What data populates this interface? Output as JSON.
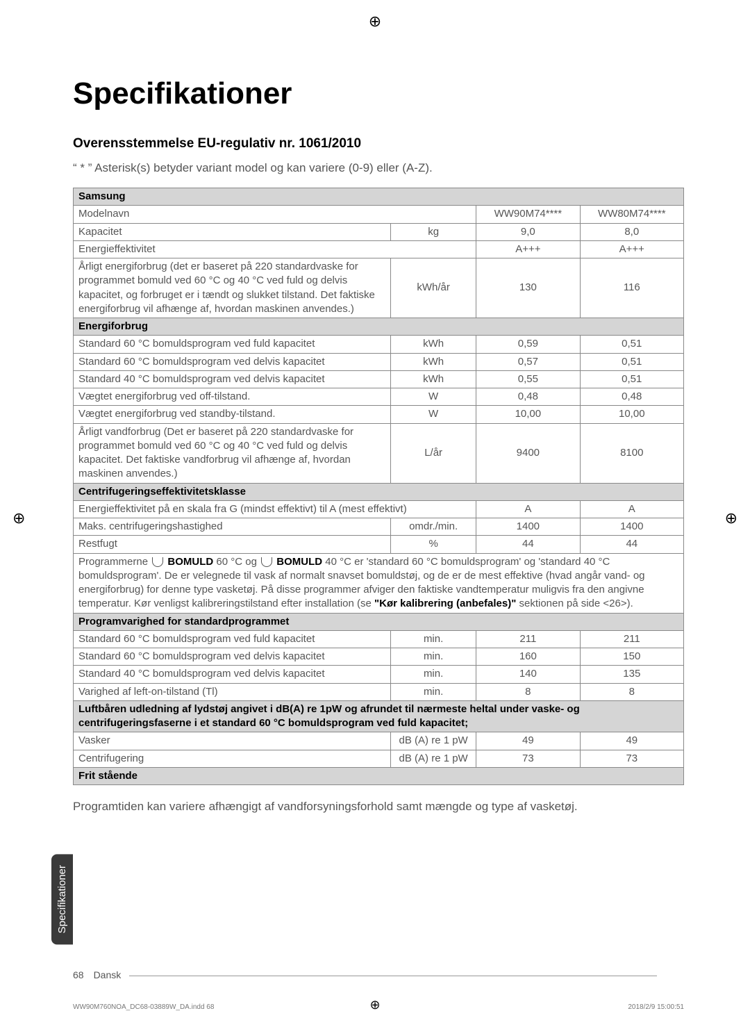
{
  "page": {
    "title": "Specifikationer",
    "subtitle": "Overensstemmelse EU-regulativ nr. 1061/2010",
    "asterisk_note": "“ * ” Asterisk(s) betyder variant model og kan variere (0-9) eller (A-Z).",
    "body_note": "Programtiden kan variere afhængigt af vandforsyningsforhold samt mængde og type af vasketøj.",
    "side_tab": "Specifikationer",
    "footer_page": "68 Dansk",
    "footer_file": "WW90M760NOA_DC68-03889W_DA.indd   68",
    "footer_time": "2018/2/9   15:00:51"
  },
  "table": {
    "brand_header": "Samsung",
    "rows": {
      "model_label": "Modelnavn",
      "model_v1": "WW90M74****",
      "model_v2": "WW80M74****",
      "capacity_label": "Kapacitet",
      "capacity_unit": "kg",
      "capacity_v1": "9,0",
      "capacity_v2": "8,0",
      "eff_label": "Energieffektivitet",
      "eff_v1": "A+++",
      "eff_v2": "A+++",
      "annual_energy_label": "Årligt energiforbrug (det er baseret på 220 standardvaske for programmet bomuld ved 60 °C og 40 °C ved fuld og delvis kapacitet, og forbruget er i tændt og slukket tilstand. Det faktiske energiforbrug vil afhænge af, hvordan maskinen anvendes.)",
      "annual_energy_unit": "kWh/år",
      "annual_energy_v1": "130",
      "annual_energy_v2": "116",
      "energy_header": "Energiforbrug",
      "std60_full_label": "Standard 60 °C bomuldsprogram ved fuld kapacitet",
      "std60_full_unit": "kWh",
      "std60_full_v1": "0,59",
      "std60_full_v2": "0,51",
      "std60_part_label": "Standard 60 °C bomuldsprogram ved delvis kapacitet",
      "std60_part_unit": "kWh",
      "std60_part_v1": "0,57",
      "std60_part_v2": "0,51",
      "std40_part_label": "Standard 40 °C bomuldsprogram ved delvis kapacitet",
      "std40_part_unit": "kWh",
      "std40_part_v1": "0,55",
      "std40_part_v2": "0,51",
      "off_label": "Vægtet energiforbrug ved off-tilstand.",
      "off_unit": "W",
      "off_v1": "0,48",
      "off_v2": "0,48",
      "standby_label": "Vægtet energiforbrug ved standby-tilstand.",
      "standby_unit": "W",
      "standby_v1": "10,00",
      "standby_v2": "10,00",
      "water_label": "Årligt vandforbrug (Det er baseret på 220 standardvaske for programmet bomuld ved 60 °C og 40 °C ved fuld og delvis kapacitet. Det faktiske vandforbrug vil afhænge af, hvordan maskinen anvendes.)",
      "water_unit": "L/år",
      "water_v1": "9400",
      "water_v2": "8100",
      "spin_header": "Centrifugeringseffektivitetsklasse",
      "spin_eff_label": "Energieffektivitet på en skala fra G (mindst effektivt) til A (mest effektivt)",
      "spin_eff_v1": "A",
      "spin_eff_v2": "A",
      "max_spin_label": "Maks. centrifugeringshastighed",
      "max_spin_unit": "omdr./min.",
      "max_spin_v1": "1400",
      "max_spin_v2": "1400",
      "moisture_label": "Restfugt",
      "moisture_unit": "%",
      "moisture_v1": "44",
      "moisture_v2": "44",
      "program_note_pre": "Programmerne ",
      "bomuld1": "BOMULD",
      "program_note_mid1": " 60 °C og ",
      "bomuld2": "BOMULD",
      "program_note_mid2": " 40 °C er 'standard 60 °C bomuldsprogram' og 'standard 40 °C bomuldsprogram'. De er velegnede til vask af normalt snavset bomuldstøj, og de er de mest effektive (hvad angår vand- og energiforbrug) for denne type vasketøj. På disse programmer afviger den faktiske vandtemperatur muligvis fra den angivne temperatur. Kør venligst kalibreringstilstand efter installation (se ",
      "calib_ref": "\"Kør kalibrering (anbefales)\"",
      "program_note_end": " sektionen på side <26>).",
      "duration_header": "Programvarighed for standardprogrammet",
      "d60_full_label": "Standard 60 °C bomuldsprogram ved fuld kapacitet",
      "d60_full_unit": "min.",
      "d60_full_v1": "211",
      "d60_full_v2": "211",
      "d60_part_label": "Standard 60 °C bomuldsprogram ved delvis kapacitet",
      "d60_part_unit": "min.",
      "d60_part_v1": "160",
      "d60_part_v2": "150",
      "d40_part_label": "Standard 40 °C bomuldsprogram ved delvis kapacitet",
      "d40_part_unit": "min.",
      "d40_part_v1": "140",
      "d40_part_v2": "135",
      "lefton_label": "Varighed af left-on-tilstand (Tl)",
      "lefton_unit": "min.",
      "lefton_v1": "8",
      "lefton_v2": "8",
      "noise_header": "Luftbåren  udledning af lydstøj angivet i dB(A) re 1pW og afrundet til  nærmeste heltal under vaske- og centrifugeringsfaserne i et standard 60 °C bomuldsprogram ved fuld kapacitet;",
      "wash_label": "Vasker",
      "wash_unit": "dB (A) re 1 pW",
      "wash_v1": "49",
      "wash_v2": "49",
      "spin2_label": "Centrifugering",
      "spin2_unit": "dB (A) re 1 pW",
      "spin2_v1": "73",
      "spin2_v2": "73",
      "freestanding": "Frit stående"
    }
  }
}
